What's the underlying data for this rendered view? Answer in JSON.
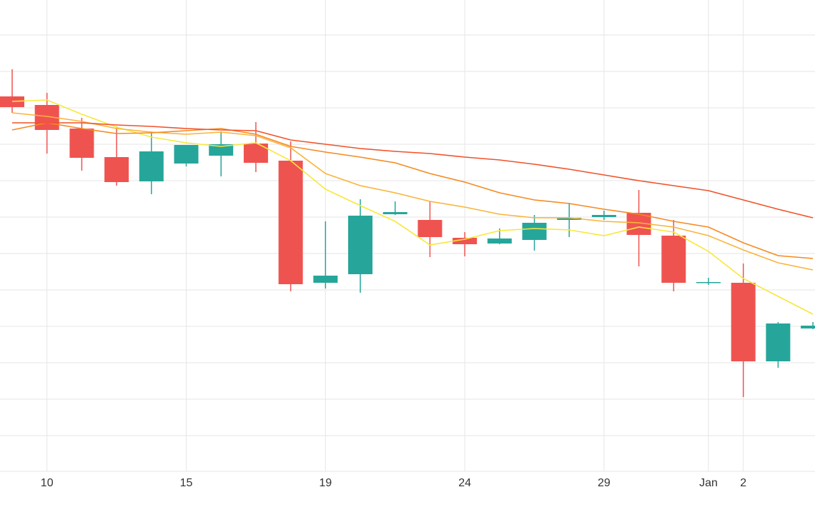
{
  "chart_data": {
    "type": "candlestick",
    "categories": [
      null,
      "10",
      null,
      null,
      null,
      "15",
      null,
      null,
      null,
      "19",
      null,
      null,
      null,
      "24",
      null,
      null,
      null,
      "29",
      null,
      null,
      "Jan",
      "2",
      null,
      null
    ],
    "open": [
      525,
      513,
      480,
      440,
      406,
      431,
      442,
      459,
      435,
      264,
      276,
      360,
      352,
      327,
      319,
      324,
      352,
      356,
      362,
      330,
      264,
      264,
      154,
      200
    ],
    "high": [
      563,
      530,
      495,
      483,
      476,
      457,
      476,
      489,
      462,
      350,
      381,
      378,
      378,
      335,
      340,
      359,
      376,
      365,
      394,
      352,
      271,
      291,
      209,
      209
    ],
    "low": [
      502,
      445,
      421,
      400,
      388,
      427,
      413,
      419,
      252,
      256,
      250,
      359,
      300,
      301,
      318,
      309,
      328,
      352,
      287,
      252,
      261,
      104,
      145,
      199
    ],
    "close": [
      510,
      478,
      439,
      405,
      448,
      457,
      458,
      432,
      262,
      274,
      358,
      363,
      328,
      318,
      326,
      348,
      355,
      359,
      331,
      264,
      265,
      154,
      207,
      204
    ],
    "up_color": "#26a69a",
    "down_color": "#ef5350",
    "series": [
      {
        "color": "#f7e83a",
        "values": [
          518,
          520,
          500,
          482,
          468,
          460,
          455,
          460,
          435,
          395,
          372,
          350,
          317,
          325,
          337,
          340,
          338,
          330,
          342,
          335,
          308,
          270,
          245,
          220
        ]
      },
      {
        "color": "#f9b43a",
        "values": [
          502,
          497,
          490,
          480,
          475,
          472,
          475,
          470,
          453,
          417,
          400,
          390,
          378,
          370,
          360,
          355,
          355,
          350,
          348,
          342,
          330,
          310,
          292,
          282
        ]
      },
      {
        "color": "#f58a1f",
        "values": [
          478,
          488,
          480,
          473,
          474,
          477,
          480,
          472,
          455,
          447,
          440,
          432,
          417,
          405,
          390,
          380,
          375,
          367,
          360,
          350,
          342,
          320,
          302,
          298
        ]
      },
      {
        "color": "#f0522a",
        "values": [
          488,
          488,
          488,
          485,
          483,
          480,
          478,
          477,
          464,
          458,
          452,
          448,
          445,
          440,
          436,
          430,
          423,
          415,
          407,
          400,
          393,
          380,
          367,
          355
        ]
      }
    ],
    "ylim": [
      0,
      660
    ],
    "yticks": [
      0,
      50,
      101,
      152,
      203,
      254,
      305,
      356,
      407,
      458,
      509,
      560,
      611
    ],
    "ytick_labels": false,
    "grid": true
  }
}
